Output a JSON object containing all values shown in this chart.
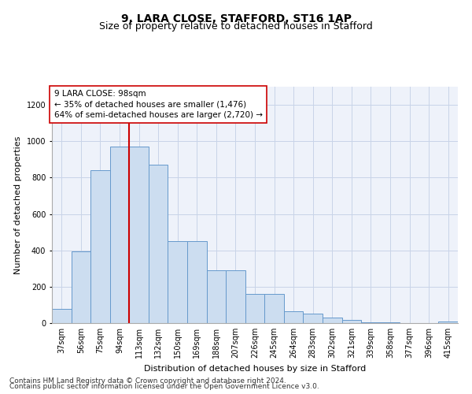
{
  "title": "9, LARA CLOSE, STAFFORD, ST16 1AP",
  "subtitle": "Size of property relative to detached houses in Stafford",
  "xlabel": "Distribution of detached houses by size in Stafford",
  "ylabel": "Number of detached properties",
  "categories": [
    "37sqm",
    "56sqm",
    "75sqm",
    "94sqm",
    "113sqm",
    "132sqm",
    "150sqm",
    "169sqm",
    "188sqm",
    "207sqm",
    "226sqm",
    "245sqm",
    "264sqm",
    "283sqm",
    "302sqm",
    "321sqm",
    "339sqm",
    "358sqm",
    "377sqm",
    "396sqm",
    "415sqm"
  ],
  "values": [
    80,
    395,
    840,
    970,
    970,
    870,
    450,
    450,
    290,
    290,
    160,
    160,
    63,
    50,
    30,
    18,
    5,
    5,
    0,
    0,
    8
  ],
  "bar_color": "#ccddf0",
  "bar_edge_color": "#6699cc",
  "vline_x_index": 4,
  "vline_color": "#cc0000",
  "annotation_text": "9 LARA CLOSE: 98sqm\n← 35% of detached houses are smaller (1,476)\n64% of semi-detached houses are larger (2,720) →",
  "annotation_box_facecolor": "#ffffff",
  "annotation_box_edgecolor": "#cc0000",
  "ylim": [
    0,
    1300
  ],
  "yticks": [
    0,
    200,
    400,
    600,
    800,
    1000,
    1200
  ],
  "bg_color": "#eef2fa",
  "grid_color": "#c8d4e8",
  "title_fontsize": 10,
  "subtitle_fontsize": 9,
  "xlabel_fontsize": 8,
  "ylabel_fontsize": 8,
  "tick_fontsize": 7,
  "annotation_fontsize": 7.5,
  "footer_fontsize": 6.5,
  "footer_line1": "Contains HM Land Registry data © Crown copyright and database right 2024.",
  "footer_line2": "Contains public sector information licensed under the Open Government Licence v3.0."
}
